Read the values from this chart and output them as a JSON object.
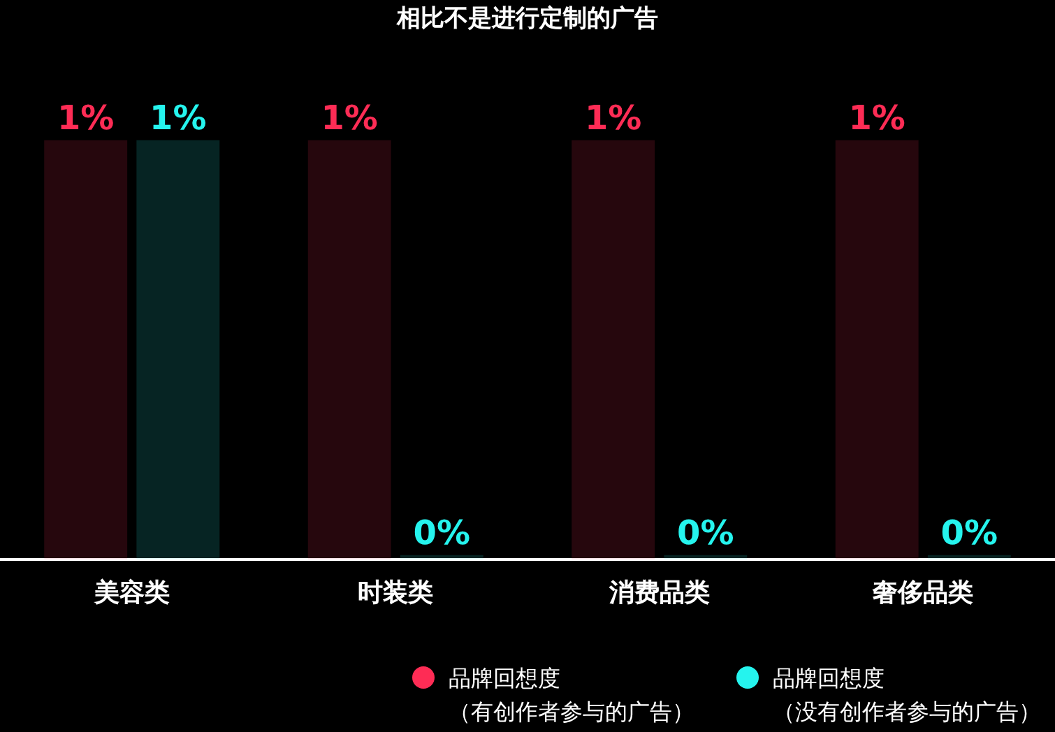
{
  "chart_data": {
    "type": "bar",
    "title": "相比不是进行定制的广告",
    "categories": [
      "美容类",
      "时装类",
      "消费品类",
      "奢侈品类"
    ],
    "series": [
      {
        "name": "品牌回想度（有创作者参与的广告）",
        "color": "#fe2c55",
        "values": [
          1,
          1,
          1,
          1
        ],
        "value_labels": [
          "1%",
          "1%",
          "1%",
          "1%"
        ]
      },
      {
        "name": "品牌回想度（没有创作者参与的广告）",
        "color": "#25f4ee",
        "values": [
          1,
          0,
          0,
          0
        ],
        "value_labels": [
          "1%",
          "0%",
          "0%",
          "0%"
        ]
      }
    ],
    "legend": "bottom right"
  }
}
